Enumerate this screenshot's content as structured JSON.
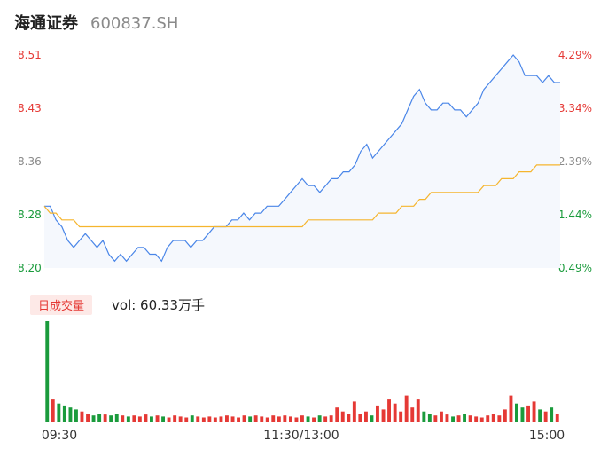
{
  "header": {
    "name": "海通证券",
    "code": "600837.SH"
  },
  "volume_panel": {
    "tab_label": "日成交量",
    "vol_text": "vol: 60.33万手"
  },
  "colors": {
    "price_line": "#4a86e8",
    "avg_line": "#f5b52e",
    "up": "#e53935",
    "down": "#1a9b3c",
    "neutral": "#8a8a8a",
    "area_fill": "#f5f8fd"
  },
  "chart_data": {
    "type": "line",
    "price_ticks": [
      "8.51",
      "8.43",
      "8.36",
      "8.28",
      "8.20"
    ],
    "pct_ticks": [
      "4.29%",
      "3.34%",
      "2.39%",
      "1.44%",
      "0.49%"
    ],
    "time_labels": [
      "09:30",
      "11:30/13:00",
      "15:00"
    ],
    "ylim": [
      8.2,
      8.51
    ],
    "price_series": [
      8.29,
      8.29,
      8.27,
      8.26,
      8.24,
      8.23,
      8.24,
      8.25,
      8.24,
      8.23,
      8.24,
      8.22,
      8.21,
      8.22,
      8.21,
      8.22,
      8.23,
      8.23,
      8.22,
      8.22,
      8.21,
      8.23,
      8.24,
      8.24,
      8.24,
      8.23,
      8.24,
      8.24,
      8.25,
      8.26,
      8.26,
      8.26,
      8.27,
      8.27,
      8.28,
      8.27,
      8.28,
      8.28,
      8.29,
      8.29,
      8.29,
      8.3,
      8.31,
      8.32,
      8.33,
      8.32,
      8.32,
      8.31,
      8.32,
      8.33,
      8.33,
      8.34,
      8.34,
      8.35,
      8.37,
      8.38,
      8.36,
      8.37,
      8.38,
      8.39,
      8.4,
      8.41,
      8.43,
      8.45,
      8.46,
      8.44,
      8.43,
      8.43,
      8.44,
      8.44,
      8.43,
      8.43,
      8.42,
      8.43,
      8.44,
      8.46,
      8.47,
      8.48,
      8.49,
      8.5,
      8.51,
      8.5,
      8.48,
      8.48,
      8.48,
      8.47,
      8.48,
      8.47,
      8.47
    ],
    "avg_series": [
      8.29,
      8.28,
      8.28,
      8.27,
      8.27,
      8.27,
      8.26,
      8.26,
      8.26,
      8.26,
      8.26,
      8.26,
      8.26,
      8.26,
      8.26,
      8.26,
      8.26,
      8.26,
      8.26,
      8.26,
      8.26,
      8.26,
      8.26,
      8.26,
      8.26,
      8.26,
      8.26,
      8.26,
      8.26,
      8.26,
      8.26,
      8.26,
      8.26,
      8.26,
      8.26,
      8.26,
      8.26,
      8.26,
      8.26,
      8.26,
      8.26,
      8.26,
      8.26,
      8.26,
      8.26,
      8.27,
      8.27,
      8.27,
      8.27,
      8.27,
      8.27,
      8.27,
      8.27,
      8.27,
      8.27,
      8.27,
      8.27,
      8.28,
      8.28,
      8.28,
      8.28,
      8.29,
      8.29,
      8.29,
      8.3,
      8.3,
      8.31,
      8.31,
      8.31,
      8.31,
      8.31,
      8.31,
      8.31,
      8.31,
      8.31,
      8.32,
      8.32,
      8.32,
      8.33,
      8.33,
      8.33,
      8.34,
      8.34,
      8.34,
      8.35,
      8.35,
      8.35,
      8.35,
      8.35
    ],
    "volume_series": [
      100,
      22,
      18,
      16,
      14,
      12,
      10,
      8,
      6,
      8,
      7,
      6,
      8,
      6,
      5,
      6,
      5,
      7,
      5,
      6,
      5,
      4,
      6,
      5,
      4,
      6,
      5,
      4,
      5,
      4,
      5,
      6,
      5,
      4,
      6,
      5,
      6,
      5,
      4,
      6,
      5,
      6,
      5,
      4,
      6,
      5,
      4,
      6,
      5,
      6,
      14,
      10,
      8,
      20,
      8,
      10,
      6,
      16,
      12,
      22,
      18,
      10,
      26,
      14,
      22,
      10,
      8,
      6,
      10,
      7,
      5,
      6,
      8,
      6,
      5,
      4,
      6,
      8,
      6,
      12,
      26,
      18,
      14,
      16,
      20,
      12,
      10,
      14,
      8
    ]
  }
}
